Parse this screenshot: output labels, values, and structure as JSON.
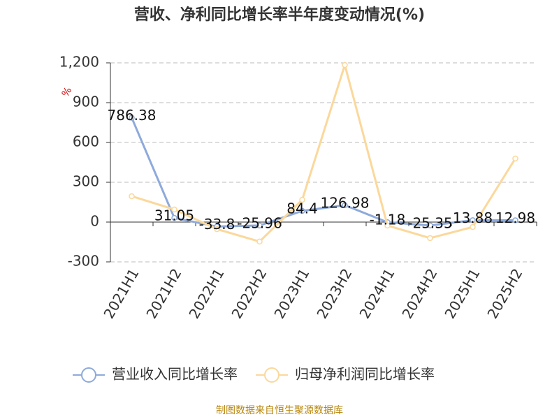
{
  "chart_data": {
    "type": "line",
    "title": "营收、净利同比增长率半年度变动情况(%)",
    "y_label": "%",
    "source": "制图数据来自恒生聚源数据库",
    "categories": [
      "2021H1",
      "2021H2",
      "2022H1",
      "2022H2",
      "2023H1",
      "2023H2",
      "2024H1",
      "2024H2",
      "2025H1",
      "2025H2"
    ],
    "series": [
      {
        "name": "营业收入同比增长率",
        "color": "#8eaadb",
        "values": [
          786.38,
          31.05,
          -33.8,
          -25.96,
          84.4,
          126.98,
          -1.18,
          -25.35,
          13.88,
          12.98
        ]
      },
      {
        "name": "归母净利润同比增长率",
        "color": "#fbd89b",
        "values": [
          195,
          95,
          -53,
          -147,
          168,
          1184,
          -26,
          -121,
          -37,
          479
        ]
      }
    ],
    "ylim": [
      -300,
      1200
    ],
    "yticks": [
      -300,
      0,
      300,
      600,
      900,
      {
        "value": 1200,
        "label": "1,200"
      }
    ],
    "grid": true,
    "data_labels_series": 0
  }
}
